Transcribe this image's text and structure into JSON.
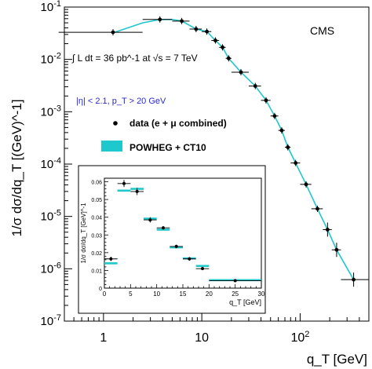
{
  "chart_data": [
    {
      "type": "scatter",
      "xscale": "log",
      "yscale": "log",
      "xlim": [
        0.4,
        500
      ],
      "ylim": [
        1e-07,
        0.1
      ],
      "xlabel": "q_T [GeV]",
      "ylabel": "1/σ dσ/dq_T [(GeV)^-1]",
      "x_ticklabels": [
        "1",
        "10",
        "10^2"
      ],
      "y_ticklabels": [
        "10^-7",
        "10^-6",
        "10^-5",
        "10^-4",
        "10^-3",
        "10^-2",
        "10^-1"
      ],
      "experiment_label": "CMS",
      "luminosity_label": "∫ L dt = 36 pb^-1 at √s = 7 TeV",
      "selection_label": "|η| < 2.1, p_T > 20 GeV",
      "legend": [
        {
          "label": "data (e + μ combined)",
          "marker": "point-with-error"
        },
        {
          "label": "POWHEG + CT10",
          "marker": "band",
          "color": "#1ec8cc"
        }
      ],
      "series": [
        {
          "name": "data (e + μ combined)",
          "color": "#000000",
          "points": [
            {
              "x": 1.25,
              "y": 0.033,
              "xlo": 0.35,
              "xhi": 2.5
            },
            {
              "x": 3.75,
              "y": 0.058,
              "xlo": 2.5,
              "xhi": 5
            },
            {
              "x": 6.25,
              "y": 0.054,
              "xlo": 5,
              "xhi": 7.5
            },
            {
              "x": 8.75,
              "y": 0.038,
              "xlo": 7.5,
              "xhi": 10
            },
            {
              "x": 11.25,
              "y": 0.034,
              "xlo": 10,
              "xhi": 12.5
            },
            {
              "x": 13.75,
              "y": 0.023,
              "xlo": 12.5,
              "xhi": 15
            },
            {
              "x": 16.25,
              "y": 0.017,
              "xlo": 15,
              "xhi": 17.5
            },
            {
              "x": 18.75,
              "y": 0.0105,
              "xlo": 17.5,
              "xhi": 20
            },
            {
              "x": 25,
              "y": 0.0057,
              "xlo": 20,
              "xhi": 30
            },
            {
              "x": 35,
              "y": 0.0031,
              "xlo": 30,
              "xhi": 40
            },
            {
              "x": 45,
              "y": 0.00165,
              "xlo": 40,
              "xhi": 50
            },
            {
              "x": 55,
              "y": 0.00083,
              "xlo": 50,
              "xhi": 60
            },
            {
              "x": 65,
              "y": 0.00044,
              "xlo": 60,
              "xhi": 70
            },
            {
              "x": 75,
              "y": 0.00021,
              "xlo": 70,
              "xhi": 80
            },
            {
              "x": 90,
              "y": 0.000105,
              "xlo": 80,
              "xhi": 100
            },
            {
              "x": 115,
              "y": 4.1e-05,
              "xlo": 100,
              "xhi": 130
            },
            {
              "x": 150,
              "y": 1.4e-05,
              "xlo": 130,
              "xhi": 170
            },
            {
              "x": 190,
              "y": 5.6e-06,
              "xlo": 170,
              "xhi": 210
            },
            {
              "x": 235,
              "y": 2.3e-06,
              "xlo": 210,
              "xhi": 260
            },
            {
              "x": 350,
              "y": 6.2e-07,
              "xlo": 260,
              "xhi": 500
            }
          ]
        },
        {
          "name": "POWHEG + CT10",
          "color": "#1ec8cc",
          "points": [
            {
              "x": 1.3,
              "y": 0.033
            },
            {
              "x": 2.5,
              "y": 0.05
            },
            {
              "x": 3.75,
              "y": 0.058
            },
            {
              "x": 5,
              "y": 0.058
            },
            {
              "x": 6.25,
              "y": 0.054
            },
            {
              "x": 8.75,
              "y": 0.038
            },
            {
              "x": 11.25,
              "y": 0.034
            },
            {
              "x": 13.75,
              "y": 0.023
            },
            {
              "x": 16.25,
              "y": 0.017
            },
            {
              "x": 18.75,
              "y": 0.0105
            },
            {
              "x": 25,
              "y": 0.0057
            },
            {
              "x": 35,
              "y": 0.0031
            },
            {
              "x": 45,
              "y": 0.00165
            },
            {
              "x": 55,
              "y": 0.00083
            },
            {
              "x": 65,
              "y": 0.00044
            },
            {
              "x": 75,
              "y": 0.00021
            },
            {
              "x": 90,
              "y": 0.000105
            },
            {
              "x": 115,
              "y": 4.1e-05
            },
            {
              "x": 150,
              "y": 1.4e-05
            },
            {
              "x": 190,
              "y": 5.6e-06
            },
            {
              "x": 235,
              "y": 2.3e-06
            },
            {
              "x": 350,
              "y": 6.2e-07
            }
          ]
        }
      ]
    },
    {
      "type": "scatter",
      "xlim": [
        0,
        30
      ],
      "ylim": [
        0,
        0.062
      ],
      "xlabel": "q_T [GeV]",
      "ylabel": "1/σ dσ/dq_T [GeV]^-1",
      "x_ticklabels": [
        "0",
        "5",
        "10",
        "15",
        "20",
        "25",
        "30"
      ],
      "y_ticklabels": [
        "0",
        "0.01",
        "0.02",
        "0.03",
        "0.04",
        "0.05",
        "0.06"
      ],
      "series": [
        {
          "name": "data (e + μ combined)",
          "color": "#000000",
          "points": [
            {
              "x": 1.25,
              "y": 0.0165,
              "xlo": 0,
              "xhi": 2.5,
              "err": 0.0012
            },
            {
              "x": 3.75,
              "y": 0.059,
              "xlo": 2.5,
              "xhi": 5,
              "err": 0.002
            },
            {
              "x": 6.25,
              "y": 0.0545,
              "xlo": 5,
              "xhi": 7.5,
              "err": 0.002
            },
            {
              "x": 8.75,
              "y": 0.0385,
              "xlo": 7.5,
              "xhi": 10,
              "err": 0.0015
            },
            {
              "x": 11.25,
              "y": 0.034,
              "xlo": 10,
              "xhi": 12.5,
              "err": 0.001
            },
            {
              "x": 13.75,
              "y": 0.0235,
              "xlo": 12.5,
              "xhi": 15,
              "err": 0.001
            },
            {
              "x": 16.25,
              "y": 0.0165,
              "xlo": 15,
              "xhi": 17.5,
              "err": 0.001
            },
            {
              "x": 18.75,
              "y": 0.011,
              "xlo": 17.5,
              "xhi": 20,
              "err": 0.0008
            },
            {
              "x": 25,
              "y": 0.0042,
              "xlo": 20,
              "xhi": 30,
              "err": 0.0004
            }
          ]
        },
        {
          "name": "POWHEG + CT10",
          "color": "#1ec8cc",
          "points": [
            {
              "x": 1.25,
              "y": 0.014,
              "xlo": 0,
              "xhi": 2.5
            },
            {
              "x": 3.75,
              "y": 0.055,
              "xlo": 2.5,
              "xhi": 5
            },
            {
              "x": 6.25,
              "y": 0.056,
              "xlo": 5,
              "xhi": 7.5
            },
            {
              "x": 8.75,
              "y": 0.0392,
              "xlo": 7.5,
              "xhi": 10
            },
            {
              "x": 11.25,
              "y": 0.033,
              "xlo": 10,
              "xhi": 12.5
            },
            {
              "x": 13.75,
              "y": 0.023,
              "xlo": 12.5,
              "xhi": 15
            },
            {
              "x": 16.25,
              "y": 0.0168,
              "xlo": 15,
              "xhi": 17.5
            },
            {
              "x": 18.75,
              "y": 0.0125,
              "xlo": 17.5,
              "xhi": 20
            },
            {
              "x": 25,
              "y": 0.0045,
              "xlo": 20,
              "xhi": 30
            }
          ]
        }
      ]
    }
  ]
}
